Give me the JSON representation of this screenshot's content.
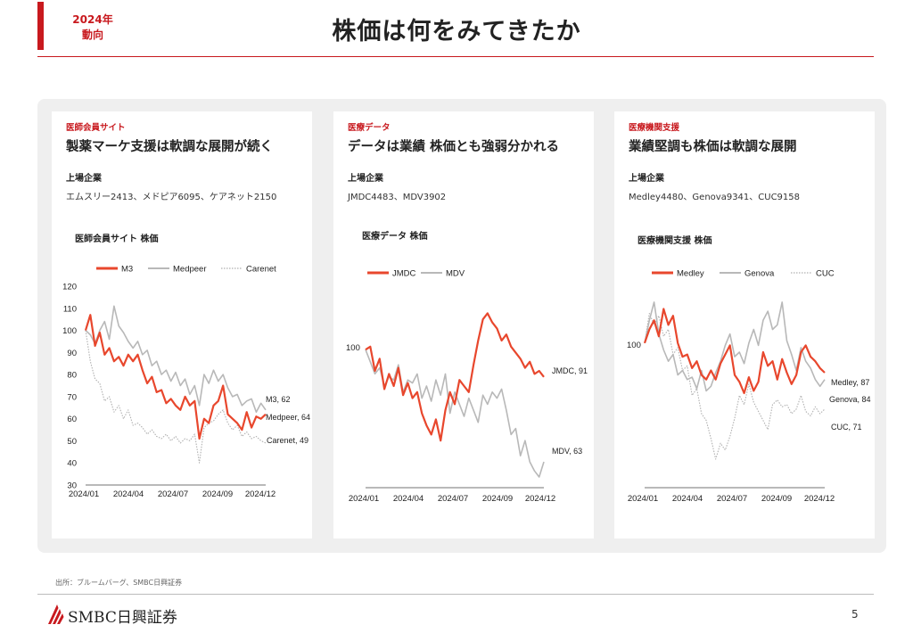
{
  "header": {
    "tag_line1": "2024年",
    "tag_line2": "動向",
    "title": "株価は何をみてきたか"
  },
  "footer": {
    "source": "出所：ブルームバーグ、SMBC日興証券",
    "logo_text": "SMBC日興証券",
    "page_number": "5"
  },
  "colors": {
    "accent": "#c8191e",
    "series_primary": "#e8472d",
    "series_secondary": "#b8b8b8",
    "series_tertiary": "#b0b0b0"
  },
  "cards": [
    {
      "category": "医師会員サイト",
      "headline": "製薬マーケ支援は軟調な展開が続く",
      "listed_label": "上場企業",
      "companies": "エムスリー2413、メドピア6095、ケアネット2150",
      "chart_data": {
        "type": "line",
        "title": "医師会員サイト 株価",
        "x_ticks": [
          "2024/01",
          "2024/04",
          "2024/07",
          "2024/09",
          "2024/12"
        ],
        "ylim": [
          30,
          120
        ],
        "y_ticks": [
          30,
          40,
          50,
          60,
          70,
          80,
          90,
          100,
          110,
          120
        ],
        "legend_position": "top",
        "series": [
          {
            "name": "M3",
            "style": "solid-red",
            "end_label": "M3, 62",
            "values": [
              100,
              107,
              93,
              99,
              89,
              92,
              86,
              88,
              84,
              89,
              86,
              89,
              82,
              76,
              79,
              72,
              73,
              67,
              69,
              66,
              64,
              70,
              66,
              68,
              51,
              60,
              58,
              66,
              68,
              75,
              62,
              60,
              58,
              55,
              63,
              56,
              61,
              60,
              62
            ]
          },
          {
            "name": "Medpeer",
            "style": "solid-gray",
            "end_label": "Medpeer, 64",
            "values": [
              100,
              98,
              94,
              100,
              104,
              96,
              111,
              102,
              99,
              95,
              92,
              95,
              89,
              91,
              84,
              86,
              80,
              82,
              77,
              81,
              75,
              78,
              71,
              75,
              66,
              80,
              76,
              82,
              77,
              80,
              74,
              70,
              71,
              66,
              68,
              69,
              63,
              67,
              64
            ]
          },
          {
            "name": "Carenet",
            "style": "dotted-gray",
            "end_label": "Carenet, 49",
            "values": [
              100,
              86,
              78,
              76,
              68,
              70,
              63,
              66,
              60,
              64,
              57,
              58,
              56,
              53,
              55,
              52,
              51,
              53,
              50,
              52,
              49,
              51,
              50,
              53,
              40,
              56,
              58,
              59,
              62,
              64,
              58,
              55,
              57,
              52,
              54,
              51,
              52,
              50,
              49
            ]
          }
        ]
      }
    },
    {
      "category": "医療データ",
      "headline": "データは業績 株価とも強弱分かれる",
      "listed_label": "上場企業",
      "companies": "JMDC4483、MDV3902",
      "chart_data": {
        "type": "line",
        "title": "医療データ 株価",
        "x_ticks": [
          "2024/01",
          "2024/04",
          "2024/07",
          "2024/09",
          "2024/12"
        ],
        "y_ticks": [
          100
        ],
        "ylim": [
          58,
          118
        ],
        "legend_position": "top",
        "series": [
          {
            "name": "JMDC",
            "style": "solid-red",
            "end_label": "JMDC, 91",
            "values": [
              100,
              101,
              93,
              97,
              87,
              92,
              88,
              94,
              85,
              89,
              84,
              86,
              79,
              75,
              72,
              77,
              70,
              80,
              86,
              82,
              90,
              88,
              86,
              95,
              103,
              110,
              112,
              109,
              107,
              103,
              105,
              101,
              99,
              97,
              94,
              96,
              92,
              93,
              91
            ]
          },
          {
            "name": "MDV",
            "style": "solid-gray",
            "end_label": "MDV, 63",
            "values": [
              100,
              96,
              92,
              94,
              88,
              91,
              90,
              95,
              86,
              90,
              89,
              92,
              84,
              88,
              83,
              90,
              85,
              92,
              79,
              86,
              82,
              78,
              84,
              80,
              76,
              85,
              82,
              86,
              84,
              87,
              80,
              72,
              74,
              65,
              70,
              63,
              60,
              58,
              63
            ]
          }
        ]
      }
    },
    {
      "category": "医療機関支援",
      "headline": "業績堅調も株価は軟調な展開",
      "listed_label": "上場企業",
      "companies": "Medley4480、Genova9341、CUC9158",
      "chart_data": {
        "type": "line",
        "title": "医療機関支援 株価",
        "x_ticks": [
          "2024/01",
          "2024/04",
          "2024/07",
          "2024/09",
          "2024/12"
        ],
        "y_ticks": [
          100
        ],
        "ylim": [
          40,
          125
        ],
        "legend_position": "top",
        "series": [
          {
            "name": "Medley",
            "style": "solid-red",
            "end_label": "Medley, 87",
            "values": [
              100,
              106,
              110,
              103,
              115,
              108,
              112,
              100,
              94,
              95,
              89,
              92,
              86,
              84,
              88,
              84,
              91,
              95,
              99,
              86,
              83,
              78,
              85,
              79,
              83,
              96,
              90,
              92,
              84,
              93,
              87,
              82,
              86,
              96,
              99,
              94,
              92,
              89,
              87
            ]
          },
          {
            "name": "Genova",
            "style": "solid-gray",
            "end_label": "Genova, 84",
            "values": [
              100,
              110,
              118,
              104,
              97,
              92,
              95,
              86,
              88,
              84,
              85,
              80,
              88,
              79,
              81,
              87,
              92,
              99,
              104,
              94,
              96,
              91,
              100,
              106,
              99,
              110,
              114,
              106,
              108,
              118,
              101,
              95,
              88,
              98,
              92,
              89,
              84,
              81,
              84
            ]
          },
          {
            "name": "CUC",
            "style": "dotted-gray",
            "end_label": "CUC, 71",
            "values": [
              100,
              113,
              108,
              112,
              103,
              106,
              95,
              98,
              88,
              90,
              77,
              80,
              69,
              66,
              58,
              49,
              56,
              53,
              59,
              67,
              77,
              73,
              82,
              74,
              70,
              66,
              62,
              73,
              75,
              72,
              73,
              69,
              71,
              77,
              70,
              68,
              72,
              69,
              71
            ]
          }
        ]
      }
    }
  ]
}
